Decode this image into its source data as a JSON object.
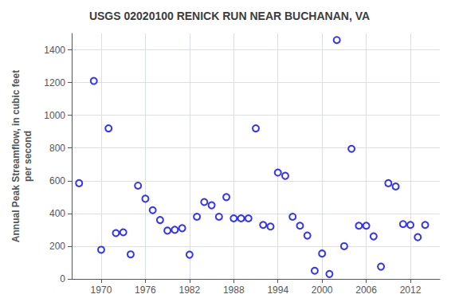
{
  "chart_data": {
    "type": "scatter",
    "title": "USGS 02020100 RENICK RUN NEAR BUCHANAN, VA",
    "ylabel": "Annual Peak Streamflow, in cubic feet\nper second",
    "x": [
      1967,
      1969,
      1970,
      1971,
      1972,
      1973,
      1974,
      1975,
      1976,
      1977,
      1978,
      1979,
      1980,
      1981,
      1982,
      1983,
      1984,
      1985,
      1986,
      1987,
      1988,
      1989,
      1990,
      1991,
      1992,
      1993,
      1994,
      1995,
      1996,
      1997,
      1998,
      1999,
      2000,
      2001,
      2002,
      2003,
      2004,
      2005,
      2006,
      2007,
      2008,
      2009,
      2010,
      2011,
      2012,
      2013,
      2014
    ],
    "values": [
      585,
      1210,
      178,
      920,
      280,
      285,
      150,
      570,
      490,
      420,
      360,
      295,
      300,
      310,
      148,
      380,
      470,
      450,
      380,
      500,
      370,
      370,
      370,
      920,
      330,
      320,
      650,
      630,
      380,
      325,
      265,
      50,
      155,
      30,
      1460,
      200,
      795,
      325,
      325,
      260,
      75,
      585,
      565,
      335,
      330,
      255,
      330
    ],
    "xlim": [
      1966,
      2016
    ],
    "ylim": [
      0,
      1500
    ],
    "xticks": [
      1970,
      1976,
      1982,
      1988,
      1994,
      2000,
      2006,
      2012
    ],
    "yticks": [
      0,
      200,
      400,
      600,
      800,
      1000,
      1200,
      1400
    ],
    "color": "blue",
    "marker": "circle",
    "grid": true
  }
}
